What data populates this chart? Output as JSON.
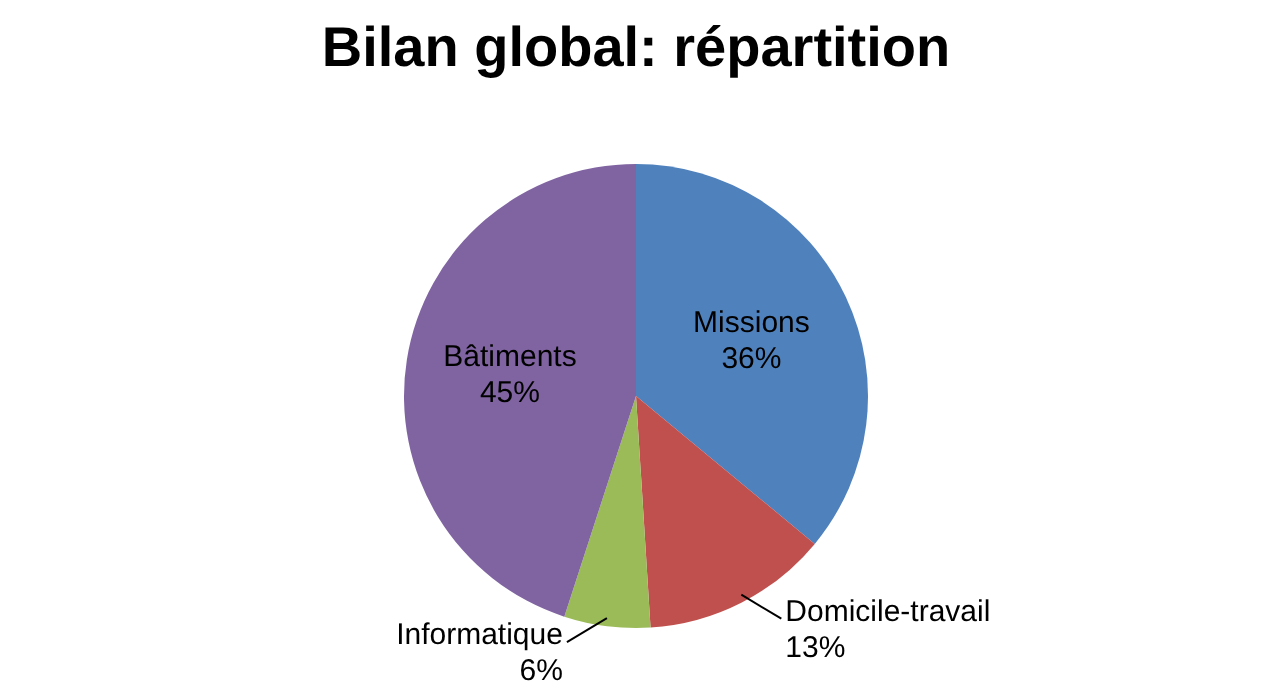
{
  "chart_data": {
    "type": "pie",
    "title": "Bilan global: répartition",
    "categories": [
      "Missions",
      "Domicile-travail",
      "Informatique",
      "Bâtiments"
    ],
    "values": [
      36,
      13,
      6,
      45
    ],
    "value_labels": [
      "36%",
      "13%",
      "6%",
      "45%"
    ],
    "colors": [
      "#4f81bd",
      "#c0504d",
      "#9bbb59",
      "#8064a2"
    ],
    "legend": false
  }
}
